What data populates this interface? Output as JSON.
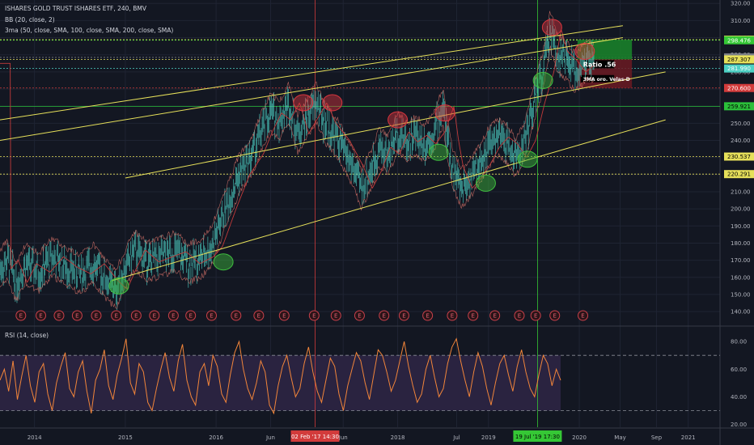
{
  "header": {
    "symbol_line": "ISHARES GOLD TRUST ISHARES ETF, 240, BMV",
    "bb_line": "BB (20, close, 2)",
    "ma_line": "3ma (50, close, SMA, 100, close, SMA, 200, close, SMA)",
    "rsi_line": "RSI (14, close)"
  },
  "annotations": {
    "ratio_label": "Ratio .56",
    "strategy_label": "3MA oro. Velas-D",
    "earnings_marker": "E"
  },
  "colors": {
    "background": "#131722",
    "candle": "#4dd0c4",
    "bb": "#e0766b",
    "trendline": "#e6e05a",
    "h_line_green": "#2bbf3a",
    "v_line_red": "#d23b3b",
    "v_line_green": "#35c735",
    "rsi_line": "#f2853a",
    "rsi_band": "#2a2340",
    "circle_red": "#d9363e",
    "circle_green": "#3fbf3f"
  },
  "chart_data": [
    {
      "type": "line",
      "y_axis_side": "right",
      "ylim": [
        132,
        322
      ],
      "y_ticks": [
        140,
        150,
        160,
        170,
        180,
        190,
        200,
        210,
        220,
        230,
        240,
        250,
        260,
        270,
        280,
        290,
        300,
        310,
        320
      ],
      "x_ticks": [
        {
          "label": "2014",
          "t": 2014.0
        },
        {
          "label": "2015",
          "t": 2015.0
        },
        {
          "label": "2016",
          "t": 2016.0
        },
        {
          "label": "Jun",
          "t": 2016.6
        },
        {
          "label": "Jun",
          "t": 2017.4
        },
        {
          "label": "2018",
          "t": 2018.0
        },
        {
          "label": "Jul",
          "t": 2018.65
        },
        {
          "label": "2019",
          "t": 2019.0
        },
        {
          "label": "2020",
          "t": 2020.0
        },
        {
          "label": "May",
          "t": 2020.45
        },
        {
          "label": "Sep",
          "t": 2020.85
        },
        {
          "label": "2021",
          "t": 2021.2
        }
      ],
      "xlim": [
        2013.62,
        2021.55
      ],
      "price_path": [
        [
          2013.62,
          165
        ],
        [
          2013.7,
          170
        ],
        [
          2013.8,
          157
        ],
        [
          2013.9,
          168
        ],
        [
          2014.05,
          163
        ],
        [
          2014.2,
          172
        ],
        [
          2014.35,
          166
        ],
        [
          2014.5,
          162
        ],
        [
          2014.65,
          168
        ],
        [
          2014.8,
          158
        ],
        [
          2014.9,
          153
        ],
        [
          2015.0,
          165
        ],
        [
          2015.1,
          176
        ],
        [
          2015.25,
          169
        ],
        [
          2015.4,
          172
        ],
        [
          2015.55,
          175
        ],
        [
          2015.7,
          168
        ],
        [
          2015.85,
          172
        ],
        [
          2015.95,
          178
        ],
        [
          2016.1,
          200
        ],
        [
          2016.25,
          220
        ],
        [
          2016.4,
          232
        ],
        [
          2016.5,
          245
        ],
        [
          2016.6,
          256
        ],
        [
          2016.7,
          252
        ],
        [
          2016.8,
          262
        ],
        [
          2016.9,
          244
        ],
        [
          2017.0,
          253
        ],
        [
          2017.1,
          262
        ],
        [
          2017.2,
          250
        ],
        [
          2017.35,
          240
        ],
        [
          2017.5,
          225
        ],
        [
          2017.6,
          212
        ],
        [
          2017.7,
          222
        ],
        [
          2017.8,
          236
        ],
        [
          2017.9,
          232
        ],
        [
          2018.0,
          245
        ],
        [
          2018.1,
          239
        ],
        [
          2018.2,
          243
        ],
        [
          2018.3,
          238
        ],
        [
          2018.4,
          245
        ],
        [
          2018.5,
          260
        ],
        [
          2018.55,
          240
        ],
        [
          2018.6,
          225
        ],
        [
          2018.7,
          212
        ],
        [
          2018.8,
          218
        ],
        [
          2018.9,
          226
        ],
        [
          2019.0,
          236
        ],
        [
          2019.1,
          242
        ],
        [
          2019.2,
          238
        ],
        [
          2019.3,
          230
        ],
        [
          2019.4,
          240
        ],
        [
          2019.5,
          262
        ],
        [
          2019.6,
          280
        ],
        [
          2019.68,
          305
        ],
        [
          2019.75,
          292
        ],
        [
          2019.85,
          287
        ],
        [
          2019.95,
          280
        ],
        [
          2020.05,
          284
        ],
        [
          2020.1,
          288
        ],
        [
          2020.16,
          285
        ]
      ],
      "horizontal_levels": [
        {
          "value": 298.816,
          "label": "298.816",
          "color": "#e6e05a"
        },
        {
          "value": 298.476,
          "label": "298.476",
          "color": "#35c735"
        },
        {
          "value": 288.474,
          "label": "288.474",
          "color": "#7a7d86"
        },
        {
          "value": 287.307,
          "label": "287.307",
          "color": "#e6e05a"
        },
        {
          "value": 281.99,
          "label": "281.990",
          "color": "#4dd0c4"
        },
        {
          "value": 270.6,
          "label": "270.600",
          "color": "#d23b3b"
        },
        {
          "value": 259.921,
          "label": "259.921",
          "color": "#2bbf3a"
        },
        {
          "value": 230.537,
          "label": "230.537",
          "color": "#e6e05a"
        },
        {
          "value": 220.291,
          "label": "220.291",
          "color": "#e6e05a"
        }
      ],
      "trendlines": [
        {
          "from": [
            2013.62,
            252
          ],
          "to": [
            2020.48,
            307
          ]
        },
        {
          "from": [
            2013.62,
            240
          ],
          "to": [
            2020.48,
            300
          ]
        },
        {
          "from": [
            2014.85,
            158
          ],
          "to": [
            2020.95,
            252
          ]
        },
        {
          "from": [
            2015.0,
            218
          ],
          "to": [
            2020.95,
            280
          ]
        }
      ],
      "vertical_markers": [
        {
          "t": 2017.09,
          "color": "#d23b3b",
          "label": "02 Feb '17   14:30"
        },
        {
          "t": 2019.54,
          "color": "#35c735",
          "label": "19 Jul '19   17:30"
        }
      ],
      "highlight_circles": [
        {
          "t": 2014.93,
          "value": 155,
          "color": "green"
        },
        {
          "t": 2016.08,
          "value": 169,
          "color": "green"
        },
        {
          "t": 2016.96,
          "value": 262,
          "color": "red"
        },
        {
          "t": 2017.28,
          "value": 262,
          "color": "red"
        },
        {
          "t": 2018.0,
          "value": 252,
          "color": "red"
        },
        {
          "t": 2018.45,
          "value": 233,
          "color": "green"
        },
        {
          "t": 2018.52,
          "value": 256,
          "color": "red"
        },
        {
          "t": 2018.97,
          "value": 215,
          "color": "green"
        },
        {
          "t": 2019.43,
          "value": 229,
          "color": "green"
        },
        {
          "t": 2019.6,
          "value": 275,
          "color": "green"
        },
        {
          "t": 2019.7,
          "value": 306,
          "color": "red"
        },
        {
          "t": 2020.06,
          "value": 292,
          "color": "red"
        }
      ],
      "earnings_events": [
        2013.85,
        2014.07,
        2014.27,
        2014.47,
        2014.68,
        2014.9,
        2015.12,
        2015.32,
        2015.53,
        2015.72,
        2015.95,
        2016.22,
        2016.47,
        2016.75,
        2017.08,
        2017.32,
        2017.58,
        2017.85,
        2018.07,
        2018.33,
        2018.6,
        2018.83,
        2019.07,
        2019.34,
        2019.52,
        2019.73,
        2020.04
      ],
      "position_box": {
        "t_start": 2019.98,
        "t_end": 2020.58,
        "entry": 287.3,
        "target": 298.8,
        "stop": 270.6
      }
    },
    {
      "type": "line",
      "title": "RSI (14, close)",
      "ylim": [
        18,
        90
      ],
      "y_ticks": [
        20,
        40,
        60,
        80
      ],
      "band": [
        30,
        70
      ],
      "series": [
        {
          "values": [
            52,
            60,
            44,
            66,
            38,
            55,
            70,
            48,
            36,
            58,
            64,
            42,
            30,
            50,
            62,
            72,
            46,
            40,
            58,
            66,
            44,
            28,
            52,
            60,
            74,
            48,
            38,
            56,
            68,
            82,
            50,
            42,
            64,
            58,
            36,
            30,
            46,
            60,
            72,
            54,
            44,
            66,
            78,
            52,
            40,
            34,
            58,
            64,
            48,
            70,
            62,
            42,
            36,
            56,
            72,
            80,
            60,
            46,
            38,
            50,
            66,
            58,
            34,
            28,
            48,
            62,
            70,
            54,
            40,
            46,
            64,
            76,
            58,
            44,
            36,
            52,
            68,
            62,
            42,
            30,
            48,
            60,
            72,
            66,
            50,
            38,
            56,
            74,
            70,
            58,
            44,
            52,
            66,
            80,
            62,
            48,
            36,
            42,
            60,
            70,
            54,
            40,
            46,
            64,
            76,
            82,
            66,
            52,
            40,
            58,
            72,
            62,
            46,
            34,
            50,
            64,
            70,
            56,
            44,
            62,
            74,
            58,
            46,
            40,
            56,
            70,
            64,
            48,
            60,
            52
          ]
        }
      ]
    }
  ]
}
